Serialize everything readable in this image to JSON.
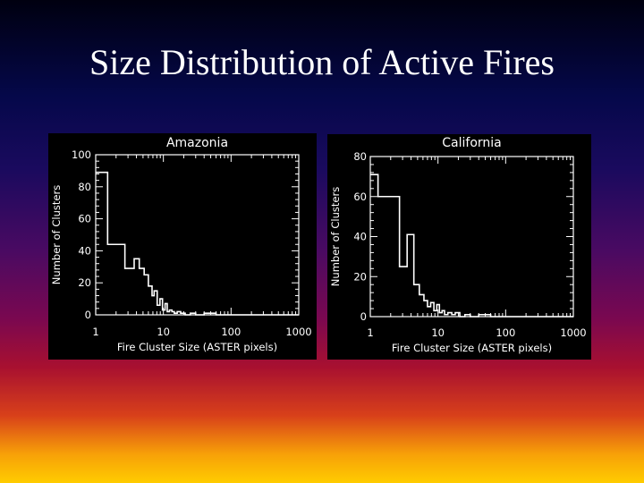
{
  "slide": {
    "title": "Size Distribution of Active Fires"
  },
  "chart_data": [
    {
      "type": "line",
      "title": "Amazonia",
      "xlabel": "Fire Cluster Size (ASTER pixels)",
      "ylabel": "Number of Clusters",
      "xscale": "log",
      "xlim": [
        1,
        1000
      ],
      "ylim": [
        0,
        100
      ],
      "xticks": [
        "1",
        "10",
        "100",
        "1000"
      ],
      "yticks": [
        "0",
        "20",
        "40",
        "60",
        "80",
        "100"
      ],
      "style": "histogram-step",
      "x": [
        1,
        1.5,
        2.7,
        3.7,
        4.4,
        5.2,
        6,
        6.8,
        7.3,
        8.1,
        8.9,
        9.7,
        10.6,
        11.4,
        12.3,
        13.4,
        14.5,
        16,
        18,
        21,
        25,
        30,
        40,
        60,
        100,
        200,
        400,
        1000
      ],
      "values": [
        89,
        44,
        29,
        35,
        29,
        25,
        18,
        12,
        15,
        6,
        10,
        3,
        7,
        2,
        3,
        2,
        1,
        2,
        1,
        0,
        1,
        0,
        1,
        0,
        0,
        0,
        0,
        0
      ]
    },
    {
      "type": "line",
      "title": "California",
      "xlabel": "Fire Cluster Size (ASTER pixels)",
      "ylabel": "Number of Clusters",
      "xscale": "log",
      "xlim": [
        1,
        1000
      ],
      "ylim": [
        0,
        80
      ],
      "xticks": [
        "1",
        "10",
        "100",
        "1000"
      ],
      "yticks": [
        "0",
        "20",
        "40",
        "60",
        "80"
      ],
      "style": "histogram-step",
      "x": [
        1,
        1.3,
        2.7,
        3.5,
        4.4,
        5.3,
        6.2,
        7,
        7.8,
        8.7,
        9.6,
        10.5,
        11.5,
        12.5,
        14,
        16,
        18,
        21,
        25,
        30,
        40,
        60,
        100,
        200,
        400,
        1000
      ],
      "values": [
        71,
        60,
        25,
        41,
        16,
        11,
        8,
        5,
        7,
        3,
        6,
        2,
        3,
        1,
        2,
        1,
        2,
        0,
        1,
        0,
        1,
        0,
        0,
        0,
        0,
        0
      ]
    }
  ]
}
